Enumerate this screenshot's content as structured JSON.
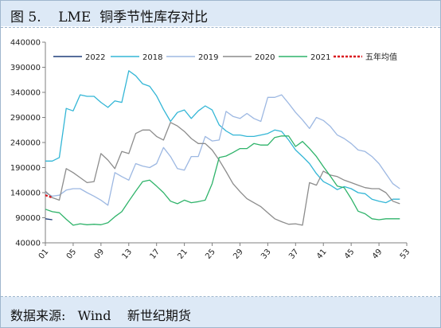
{
  "header": {
    "title": "图 5.    LME  铜季节性库存对比"
  },
  "footer": {
    "source": "数据来源:   Wind    新世纪期货"
  },
  "chart_data": {
    "type": "line",
    "title": "LME 铜季节性库存对比",
    "xlabel": "",
    "ylabel": "",
    "ylim": [
      40000,
      440000
    ],
    "xlim": [
      1,
      53
    ],
    "y_ticks": [
      40000,
      90000,
      140000,
      190000,
      240000,
      290000,
      340000,
      390000,
      440000
    ],
    "x_ticks": [
      "01",
      "05",
      "09",
      "13",
      "17",
      "21",
      "25",
      "29",
      "33",
      "37",
      "41",
      "45",
      "49",
      "53"
    ],
    "grid": false,
    "legend_position": "top",
    "series": [
      {
        "name": "2022",
        "color": "#1f3d7a",
        "dash": "solid",
        "x": [
          1,
          2
        ],
        "values": [
          88000,
          86000
        ]
      },
      {
        "name": "2018",
        "color": "#33b6d6",
        "dash": "solid",
        "x": [
          1,
          2,
          3,
          4,
          5,
          6,
          7,
          8,
          9,
          10,
          11,
          12,
          13,
          14,
          15,
          16,
          17,
          18,
          19,
          20,
          21,
          22,
          23,
          24,
          25,
          26,
          27,
          28,
          29,
          30,
          31,
          32,
          33,
          34,
          35,
          36,
          37,
          38,
          39,
          40,
          41,
          42,
          43,
          44,
          45,
          46,
          47,
          48,
          49,
          50,
          51,
          52
        ],
        "values": [
          203000,
          203000,
          210000,
          308000,
          303000,
          335000,
          332000,
          332000,
          320000,
          310000,
          323000,
          320000,
          383000,
          373000,
          357000,
          352000,
          333000,
          306000,
          282000,
          300000,
          305000,
          288000,
          303000,
          313000,
          305000,
          275000,
          263000,
          255000,
          255000,
          252000,
          252000,
          255000,
          258000,
          265000,
          262000,
          245000,
          225000,
          212000,
          198000,
          178000,
          162000,
          155000,
          146000,
          152000,
          148000,
          140000,
          138000,
          127000,
          123000,
          120000,
          127000,
          127000
        ]
      },
      {
        "name": "2019",
        "color": "#9db8e2",
        "dash": "solid",
        "x": [
          1,
          2,
          3,
          4,
          5,
          6,
          7,
          8,
          9,
          10,
          11,
          12,
          13,
          14,
          15,
          16,
          17,
          18,
          19,
          20,
          21,
          22,
          23,
          24,
          25,
          26,
          27,
          28,
          29,
          30,
          31,
          32,
          33,
          34,
          35,
          36,
          37,
          38,
          39,
          40,
          41,
          42,
          43,
          44,
          45,
          46,
          47,
          48,
          49,
          50,
          51,
          52
        ],
        "values": [
          140000,
          133000,
          135000,
          145000,
          148000,
          148000,
          140000,
          133000,
          125000,
          115000,
          180000,
          172000,
          165000,
          198000,
          193000,
          190000,
          198000,
          230000,
          212000,
          188000,
          185000,
          212000,
          212000,
          252000,
          243000,
          245000,
          302000,
          292000,
          288000,
          298000,
          288000,
          282000,
          330000,
          330000,
          335000,
          318000,
          300000,
          285000,
          268000,
          290000,
          284000,
          272000,
          255000,
          248000,
          238000,
          225000,
          222000,
          212000,
          198000,
          178000,
          158000,
          148000
        ]
      },
      {
        "name": "2020",
        "color": "#8c8c8c",
        "dash": "solid",
        "x": [
          1,
          2,
          3,
          4,
          5,
          6,
          7,
          8,
          9,
          10,
          11,
          12,
          13,
          14,
          15,
          16,
          17,
          18,
          19,
          20,
          21,
          22,
          23,
          24,
          25,
          26,
          27,
          28,
          29,
          30,
          31,
          32,
          33,
          34,
          35,
          36,
          37,
          38,
          39,
          40,
          41,
          42,
          43,
          44,
          45,
          46,
          47,
          48,
          49,
          50,
          51,
          52
        ],
        "values": [
          143000,
          130000,
          125000,
          188000,
          180000,
          170000,
          160000,
          162000,
          218000,
          205000,
          188000,
          222000,
          218000,
          258000,
          265000,
          265000,
          252000,
          245000,
          280000,
          273000,
          262000,
          248000,
          238000,
          238000,
          225000,
          205000,
          182000,
          158000,
          142000,
          128000,
          120000,
          112000,
          100000,
          88000,
          82000,
          77000,
          78000,
          75000,
          160000,
          155000,
          183000,
          175000,
          172000,
          165000,
          160000,
          155000,
          150000,
          148000,
          148000,
          140000,
          123000,
          118000
        ]
      },
      {
        "name": "2021",
        "color": "#2fb36a",
        "dash": "solid",
        "x": [
          1,
          2,
          3,
          4,
          5,
          6,
          7,
          8,
          9,
          10,
          11,
          12,
          13,
          14,
          15,
          16,
          17,
          18,
          19,
          20,
          21,
          22,
          23,
          24,
          25,
          26,
          27,
          28,
          29,
          30,
          31,
          32,
          33,
          34,
          35,
          36,
          37,
          38,
          39,
          40,
          41,
          42,
          43,
          44,
          45,
          46,
          47,
          48,
          49,
          50,
          51,
          52
        ],
        "values": [
          107000,
          102000,
          100000,
          87000,
          75000,
          78000,
          76000,
          77000,
          76000,
          80000,
          92000,
          102000,
          123000,
          143000,
          162000,
          165000,
          153000,
          140000,
          123000,
          118000,
          125000,
          120000,
          122000,
          125000,
          158000,
          210000,
          213000,
          220000,
          228000,
          228000,
          238000,
          235000,
          235000,
          250000,
          253000,
          253000,
          232000,
          242000,
          228000,
          212000,
          192000,
          173000,
          153000,
          150000,
          128000,
          103000,
          98000,
          88000,
          86000,
          88000,
          88000,
          88000
        ]
      },
      {
        "name": "五年均值",
        "color": "#d9141b",
        "dash": "dashed",
        "x": [
          1,
          2
        ],
        "values": [
          135000,
          130000
        ]
      }
    ]
  }
}
